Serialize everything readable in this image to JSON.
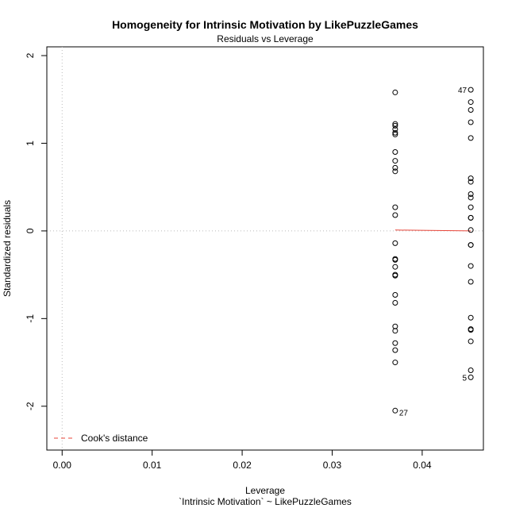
{
  "chart_data": {
    "type": "scatter",
    "title": "Homogeneity for Intrinsic Motivation by LikePuzzleGames",
    "subtitle": "Residuals vs Leverage",
    "xlabel": "Leverage",
    "xlabel2": "`Intrinsic Motivation` ~ LikePuzzleGames",
    "ylabel": "Standardized residuals",
    "xlim": [
      -0.0017,
      0.0468
    ],
    "ylim": [
      -2.5,
      2.1
    ],
    "x_ticks": [
      0.0,
      0.01,
      0.02,
      0.03,
      0.04
    ],
    "x_tick_labels": [
      "0.00",
      "0.01",
      "0.02",
      "0.03",
      "0.04"
    ],
    "y_ticks": [
      -2,
      -1,
      0,
      1,
      2
    ],
    "y_tick_labels": [
      "-2",
      "-1",
      "0",
      "1",
      "2"
    ],
    "reference_lines": {
      "x": 0,
      "y": 0,
      "color": "#bbbbbb",
      "style": "dotted"
    },
    "smooth_line": {
      "color": "#e8463a",
      "x": [
        0.037,
        0.0454
      ],
      "y": [
        0.01,
        0.0
      ]
    },
    "groups": [
      {
        "x": 0.037,
        "y": [
          1.58,
          1.22,
          1.2,
          1.16,
          1.12,
          1.1,
          0.9,
          0.8,
          0.72,
          0.68,
          0.27,
          0.18,
          -0.14,
          -0.32,
          -0.33,
          -0.41,
          -0.5,
          -0.51,
          -0.73,
          -0.82,
          -1.09,
          -1.14,
          -1.28,
          -1.36,
          -1.5,
          -2.05
        ]
      },
      {
        "x": 0.0454,
        "y": [
          1.61,
          1.47,
          1.38,
          1.24,
          1.06,
          0.6,
          0.56,
          0.42,
          0.38,
          0.27,
          0.15,
          0.15,
          0.01,
          -0.16,
          -0.16,
          -0.4,
          -0.58,
          -0.99,
          -1.12,
          -1.13,
          -1.26,
          -1.59,
          -1.67
        ]
      }
    ],
    "point_labels": [
      {
        "text": "27",
        "x": 0.037,
        "y": -2.05,
        "anchor": "right"
      },
      {
        "text": "47",
        "x": 0.0454,
        "y": 1.61,
        "anchor": "left"
      },
      {
        "text": "5",
        "x": 0.0454,
        "y": -1.67,
        "anchor": "left"
      }
    ],
    "legend": {
      "position": "bottom-left",
      "entries": [
        {
          "label": "Cook's distance",
          "color": "#e8463a",
          "style": "dashed"
        }
      ]
    },
    "grid": false
  }
}
